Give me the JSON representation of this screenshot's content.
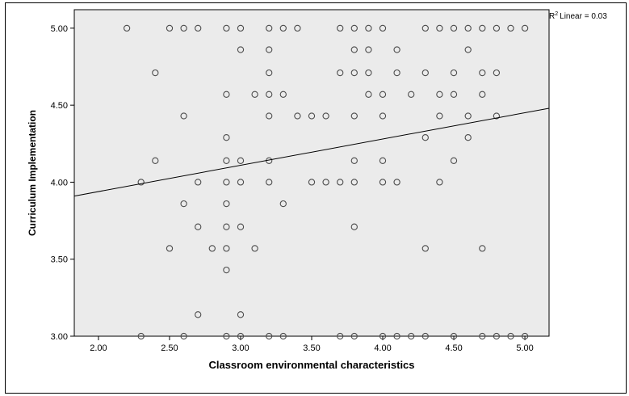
{
  "chart_data": {
    "type": "scatter",
    "xlabel": "Classroom environmental characteristics",
    "ylabel": "Curriculum Implementation",
    "xlim": [
      1.83,
      5.17
    ],
    "ylim": [
      3.0,
      5.12
    ],
    "x_ticks": [
      "2.00",
      "2.50",
      "3.00",
      "3.50",
      "4.00",
      "4.50",
      "5.00"
    ],
    "y_ticks": [
      "3.00",
      "3.50",
      "4.00",
      "4.50",
      "5.00"
    ],
    "x_tick_values": [
      2.0,
      2.5,
      3.0,
      3.5,
      4.0,
      4.5,
      5.0
    ],
    "y_tick_values": [
      3.0,
      3.5,
      4.0,
      4.5,
      5.0
    ],
    "r2_label": "Linear = 0.03",
    "r2_prefix": "R",
    "r2_sup": "2",
    "fit_line": {
      "x": [
        1.83,
        5.17
      ],
      "y": [
        3.91,
        4.48
      ]
    },
    "background_color": "#ebebeb",
    "marker_color": "#4d4d4d",
    "points": [
      [
        2.2,
        5.0
      ],
      [
        2.5,
        5.0
      ],
      [
        2.6,
        5.0
      ],
      [
        2.7,
        5.0
      ],
      [
        2.9,
        5.0
      ],
      [
        3.0,
        5.0
      ],
      [
        3.2,
        5.0
      ],
      [
        3.3,
        5.0
      ],
      [
        3.4,
        5.0
      ],
      [
        3.7,
        5.0
      ],
      [
        3.8,
        5.0
      ],
      [
        3.9,
        5.0
      ],
      [
        4.0,
        5.0
      ],
      [
        4.3,
        5.0
      ],
      [
        4.4,
        5.0
      ],
      [
        4.5,
        5.0
      ],
      [
        4.6,
        5.0
      ],
      [
        4.7,
        5.0
      ],
      [
        4.8,
        5.0
      ],
      [
        4.9,
        5.0
      ],
      [
        5.0,
        5.0
      ],
      [
        3.0,
        4.86
      ],
      [
        3.2,
        4.86
      ],
      [
        3.8,
        4.86
      ],
      [
        3.9,
        4.86
      ],
      [
        4.1,
        4.86
      ],
      [
        4.6,
        4.86
      ],
      [
        2.4,
        4.71
      ],
      [
        3.2,
        4.71
      ],
      [
        3.7,
        4.71
      ],
      [
        3.8,
        4.71
      ],
      [
        3.9,
        4.71
      ],
      [
        4.1,
        4.71
      ],
      [
        4.3,
        4.71
      ],
      [
        4.5,
        4.71
      ],
      [
        4.7,
        4.71
      ],
      [
        4.8,
        4.71
      ],
      [
        2.9,
        4.57
      ],
      [
        3.1,
        4.57
      ],
      [
        3.2,
        4.57
      ],
      [
        3.3,
        4.57
      ],
      [
        3.9,
        4.57
      ],
      [
        4.0,
        4.57
      ],
      [
        4.2,
        4.57
      ],
      [
        4.4,
        4.57
      ],
      [
        4.5,
        4.57
      ],
      [
        4.7,
        4.57
      ],
      [
        2.6,
        4.43
      ],
      [
        3.2,
        4.43
      ],
      [
        3.4,
        4.43
      ],
      [
        3.5,
        4.43
      ],
      [
        3.6,
        4.43
      ],
      [
        3.8,
        4.43
      ],
      [
        4.0,
        4.43
      ],
      [
        4.4,
        4.43
      ],
      [
        4.6,
        4.43
      ],
      [
        4.8,
        4.43
      ],
      [
        2.9,
        4.29
      ],
      [
        4.3,
        4.29
      ],
      [
        4.6,
        4.29
      ],
      [
        2.4,
        4.14
      ],
      [
        2.9,
        4.14
      ],
      [
        3.0,
        4.14
      ],
      [
        3.2,
        4.14
      ],
      [
        3.8,
        4.14
      ],
      [
        4.0,
        4.14
      ],
      [
        4.5,
        4.14
      ],
      [
        2.3,
        4.0
      ],
      [
        2.7,
        4.0
      ],
      [
        2.9,
        4.0
      ],
      [
        3.0,
        4.0
      ],
      [
        3.2,
        4.0
      ],
      [
        3.5,
        4.0
      ],
      [
        3.6,
        4.0
      ],
      [
        3.7,
        4.0
      ],
      [
        3.8,
        4.0
      ],
      [
        4.0,
        4.0
      ],
      [
        4.1,
        4.0
      ],
      [
        4.4,
        4.0
      ],
      [
        2.6,
        3.86
      ],
      [
        2.9,
        3.86
      ],
      [
        3.3,
        3.86
      ],
      [
        2.7,
        3.71
      ],
      [
        2.9,
        3.71
      ],
      [
        3.0,
        3.71
      ],
      [
        3.8,
        3.71
      ],
      [
        2.5,
        3.57
      ],
      [
        2.8,
        3.57
      ],
      [
        2.9,
        3.57
      ],
      [
        3.1,
        3.57
      ],
      [
        4.3,
        3.57
      ],
      [
        4.7,
        3.57
      ],
      [
        2.9,
        3.43
      ],
      [
        2.7,
        3.14
      ],
      [
        3.0,
        3.14
      ],
      [
        2.3,
        3.0
      ],
      [
        2.6,
        3.0
      ],
      [
        2.9,
        3.0
      ],
      [
        3.0,
        3.0
      ],
      [
        3.2,
        3.0
      ],
      [
        3.3,
        3.0
      ],
      [
        3.7,
        3.0
      ],
      [
        3.8,
        3.0
      ],
      [
        4.0,
        3.0
      ],
      [
        4.1,
        3.0
      ],
      [
        4.2,
        3.0
      ],
      [
        4.3,
        3.0
      ],
      [
        4.5,
        3.0
      ],
      [
        4.7,
        3.0
      ],
      [
        4.8,
        3.0
      ],
      [
        4.9,
        3.0
      ],
      [
        5.0,
        3.0
      ]
    ]
  }
}
